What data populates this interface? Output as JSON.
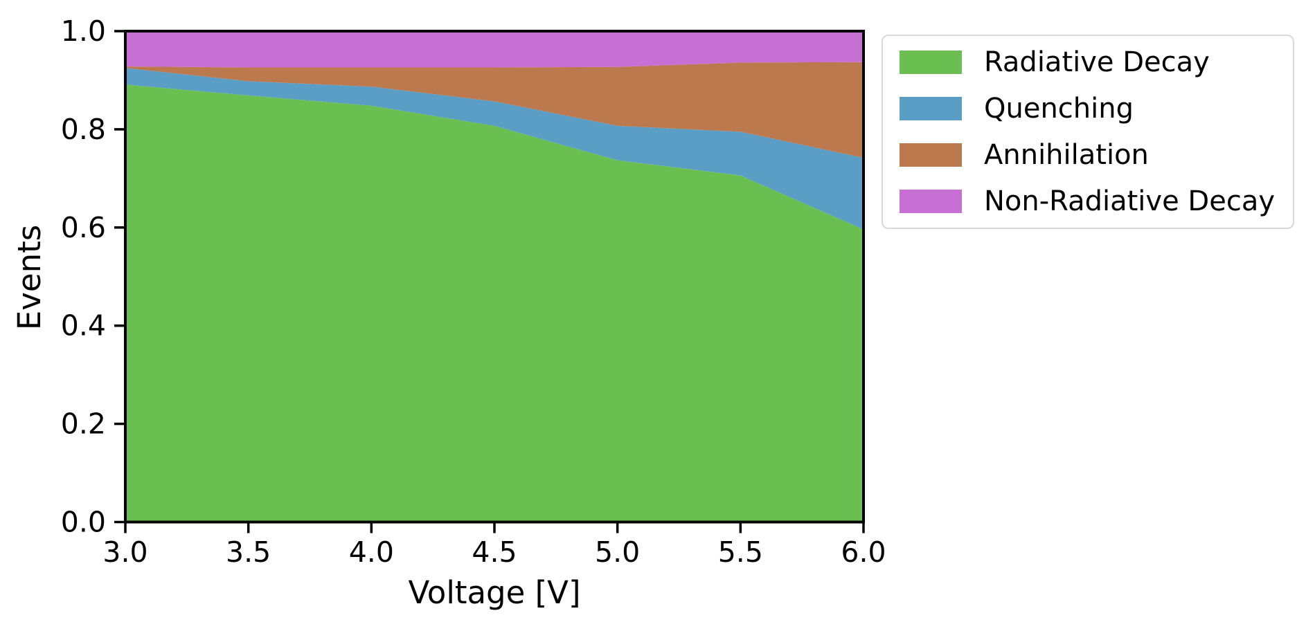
{
  "chart_data": {
    "type": "area",
    "stacked": true,
    "normalized": true,
    "x": [
      3.0,
      3.5,
      4.0,
      4.5,
      5.0,
      5.5,
      6.0
    ],
    "series": [
      {
        "name": "Radiative Decay",
        "color": "#6abf50",
        "values": [
          0.891,
          0.869,
          0.848,
          0.807,
          0.737,
          0.706,
          0.596
        ]
      },
      {
        "name": "Quenching",
        "color": "#5b9ec5",
        "values": [
          0.034,
          0.029,
          0.039,
          0.05,
          0.07,
          0.089,
          0.146
        ]
      },
      {
        "name": "Annihilation",
        "color": "#bd794e",
        "values": [
          0.003,
          0.028,
          0.039,
          0.069,
          0.12,
          0.141,
          0.195
        ]
      },
      {
        "name": "Non-Radiative Decay",
        "color": "#c86fd6",
        "values": [
          0.072,
          0.074,
          0.074,
          0.074,
          0.073,
          0.064,
          0.063
        ]
      }
    ],
    "xlabel": "Voltage [V]",
    "ylabel": "Events",
    "xlim": [
      3.0,
      6.0
    ],
    "ylim": [
      0.0,
      1.0
    ],
    "xticks": [
      "3.0",
      "3.5",
      "4.0",
      "4.5",
      "5.0",
      "5.5",
      "6.0"
    ],
    "yticks": [
      "0.0",
      "0.2",
      "0.4",
      "0.6",
      "0.8",
      "1.0"
    ],
    "grid": false,
    "legend_position": "upper-right-outside"
  },
  "colors": {
    "text": "#000000",
    "spine": "#000000",
    "legend_border": "#d9d9d9",
    "background": "#ffffff"
  }
}
